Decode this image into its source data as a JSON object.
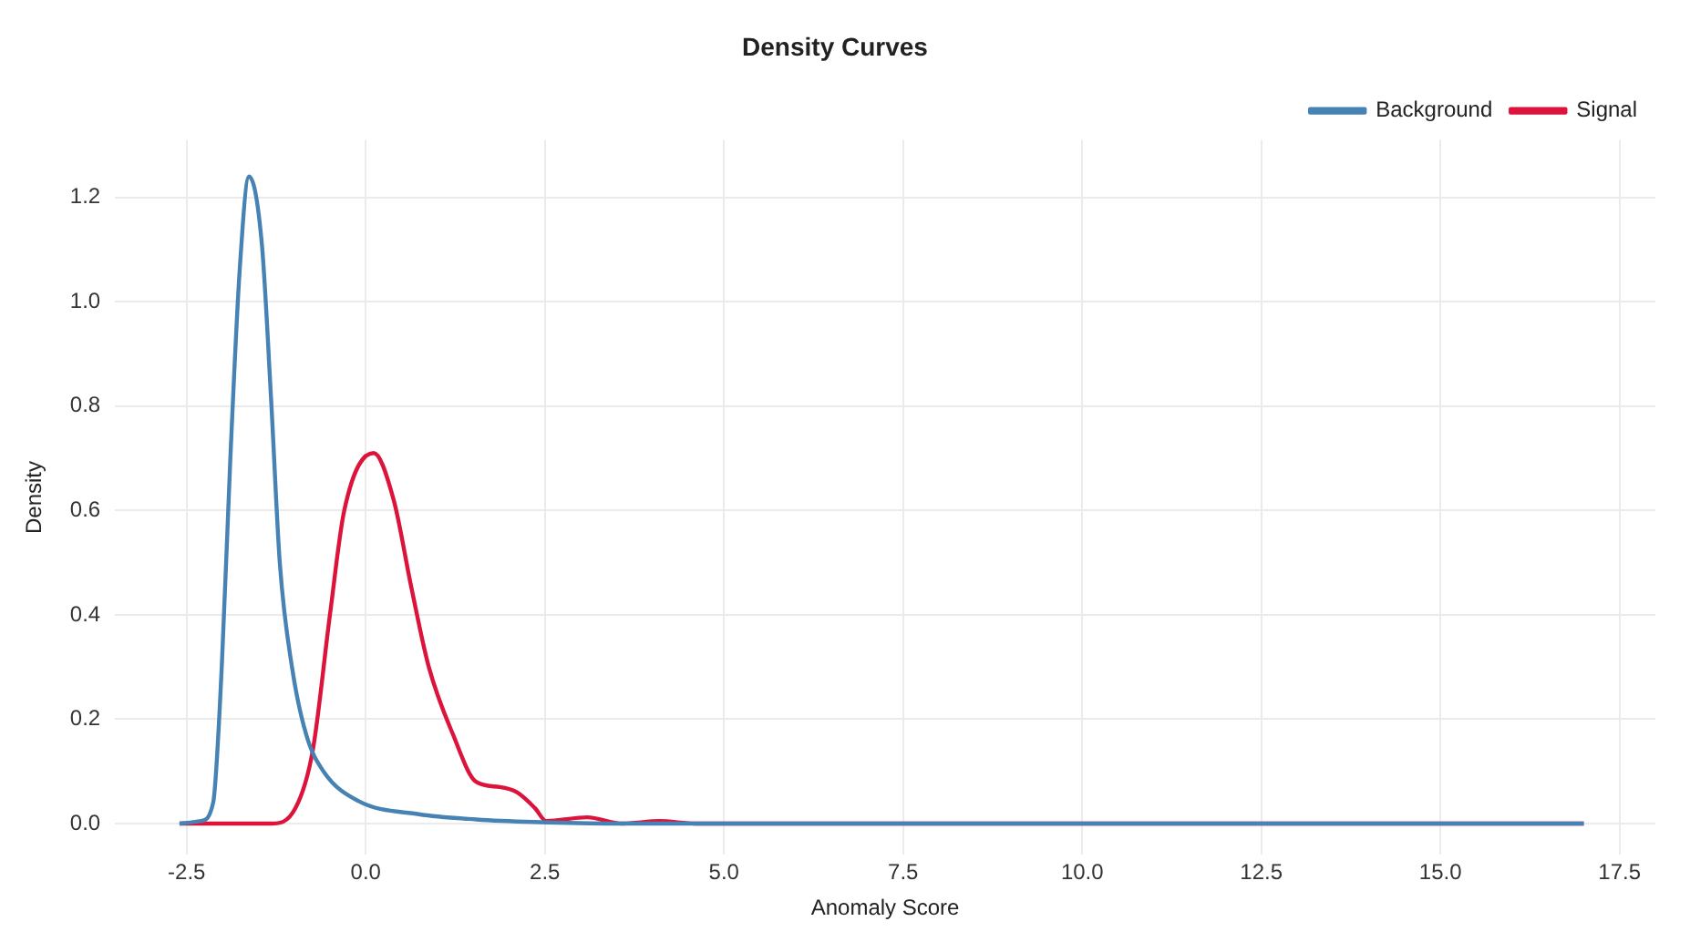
{
  "chart_data": {
    "type": "line",
    "title": "Density Curves",
    "xlabel": "Anomaly Score",
    "ylabel": "Density",
    "xlim": [
      -3.5,
      18
    ],
    "xticks": [
      {
        "value": -2.5,
        "label": "-2.5"
      },
      {
        "value": 0,
        "label": "0.0"
      },
      {
        "value": 2.5,
        "label": "2.5"
      },
      {
        "value": 5,
        "label": "5.0"
      },
      {
        "value": 7.5,
        "label": "7.5"
      },
      {
        "value": 10,
        "label": "10.0"
      },
      {
        "value": 12.5,
        "label": "12.5"
      },
      {
        "value": 15,
        "label": "15.0"
      },
      {
        "value": 17.5,
        "label": "17.5"
      }
    ],
    "ylim": [
      -0.06,
      1.31
    ],
    "yticks": [
      {
        "value": 0,
        "label": "0.0"
      },
      {
        "value": 0.2,
        "label": "0.2"
      },
      {
        "value": 0.4,
        "label": "0.4"
      },
      {
        "value": 0.6,
        "label": "0.6"
      },
      {
        "value": 0.8,
        "label": "0.8"
      },
      {
        "value": 1,
        "label": "1.0"
      },
      {
        "value": 1.2,
        "label": "1.2"
      }
    ],
    "grid": true,
    "legend": "top right",
    "marker": "none",
    "line_style": "solid",
    "series": [
      {
        "name": "Background",
        "color": "#4682b4",
        "x": [
          -2.6,
          -2.3,
          -2.13,
          -2.01,
          -1.89,
          -1.76,
          -1.63,
          -1.45,
          -1.32,
          -1.2,
          -1.03,
          -0.83,
          -0.59,
          -0.1,
          0.74,
          1.54,
          2.35,
          3.5,
          17
        ],
        "values": [
          0,
          0.005,
          0.04,
          0.3,
          0.7,
          1.06,
          1.24,
          1.11,
          0.81,
          0.5,
          0.3,
          0.17,
          0.1,
          0.043,
          0.018,
          0.008,
          0.003,
          0,
          0
        ]
      },
      {
        "name": "Signal",
        "color": "#dc143c",
        "x": [
          -2.6,
          -1.32,
          -0.98,
          -0.74,
          -0.5,
          -0.3,
          0.11,
          0.39,
          0.64,
          0.88,
          1.22,
          1.54,
          1.87,
          2.11,
          2.36,
          2.52,
          3.09,
          3.58,
          4.1,
          4.6,
          17
        ],
        "values": [
          0,
          0,
          0.03,
          0.14,
          0.4,
          0.6,
          0.71,
          0.62,
          0.45,
          0.3,
          0.17,
          0.08,
          0.07,
          0.06,
          0.03,
          0.005,
          0.012,
          0,
          0.005,
          0,
          0
        ]
      }
    ]
  }
}
